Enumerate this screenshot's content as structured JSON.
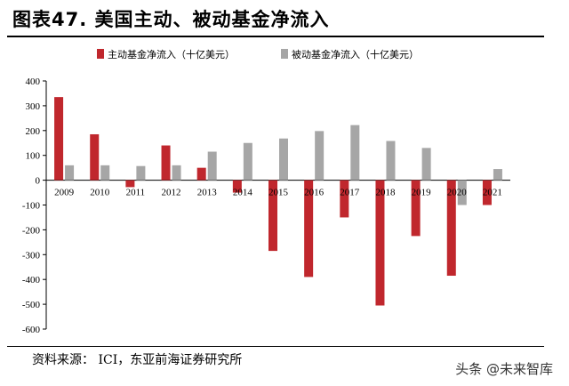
{
  "header": {
    "title": "图表47. 美国主动、被动基金净流入"
  },
  "footer": {
    "source": "资料来源： ICI，东亚前海证券研究所",
    "watermark": "头条 @未来智库"
  },
  "colors": {
    "active": "#C0272D",
    "passive": "#A6A6A6"
  },
  "chart_data": {
    "type": "bar",
    "title": "",
    "xlabel": "",
    "ylabel": "",
    "categories": [
      "2009",
      "2010",
      "2011",
      "2012",
      "2013",
      "2014",
      "2015",
      "2016",
      "2017",
      "2018",
      "2019",
      "2020",
      "2021"
    ],
    "series": [
      {
        "name": "主动基金净流入（十亿美元）",
        "values": [
          335,
          185,
          -28,
          140,
          50,
          -50,
          -285,
          -390,
          -150,
          -505,
          -225,
          -385,
          -100
        ]
      },
      {
        "name": "被动基金净流入（十亿美元）",
        "values": [
          60,
          60,
          57,
          60,
          115,
          150,
          168,
          198,
          222,
          158,
          130,
          -100,
          45
        ]
      }
    ],
    "ylim": [
      -600,
      400
    ],
    "yticks": [
      "400",
      "300",
      "200",
      "100",
      "0",
      "-100",
      "-200",
      "-300",
      "-400",
      "-500",
      "-600"
    ],
    "grid": false,
    "legend": "top"
  }
}
